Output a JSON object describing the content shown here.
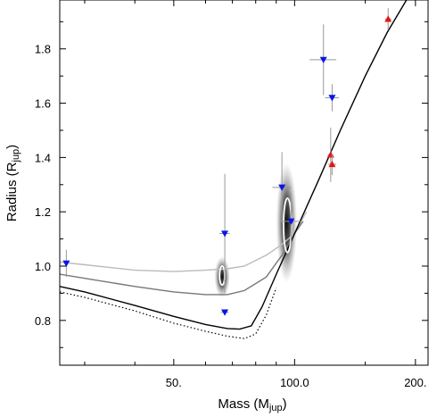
{
  "chart_data": {
    "type": "scatter",
    "title": "",
    "xlabel": "Mass (M",
    "xlabel_sub": "jup",
    "xlabel_end": ")",
    "ylabel": "Radius (R",
    "ylabel_sub": "jup",
    "ylabel_end": ")",
    "x_scale": "log",
    "xlim": [
      26,
      215
    ],
    "ylim": [
      0.635,
      1.98
    ],
    "x_ticks": [
      {
        "value": 50,
        "label": "50."
      },
      {
        "value": 100,
        "label": "100.0"
      },
      {
        "value": 200,
        "label": "200."
      }
    ],
    "x_minor_ticks": [
      30,
      40,
      60,
      70,
      80,
      90,
      150
    ],
    "y_ticks": [
      {
        "value": 0.8,
        "label": "0.8"
      },
      {
        "value": 1.0,
        "label": "1.0"
      },
      {
        "value": 1.2,
        "label": "1.2"
      },
      {
        "value": 1.4,
        "label": "1.4"
      },
      {
        "value": 1.6,
        "label": "1.6"
      },
      {
        "value": 1.8,
        "label": "1.8"
      }
    ],
    "grid": false,
    "colors": {
      "blue_marker": "#0a14e6",
      "red_marker": "#e61414",
      "error_bar": "#999999"
    },
    "series": [
      {
        "marker": "triangle-down",
        "color": "#0a14e6",
        "points": [
          {
            "x": 27.0,
            "y": 1.01,
            "xerr": 0.0,
            "yerr": 0.05
          },
          {
            "x": 67.0,
            "y": 1.12,
            "xerr": 2.0,
            "yerr": 0.22
          },
          {
            "x": 67.0,
            "y": 0.83,
            "xerr": 1.5,
            "yerr": 0.01
          },
          {
            "x": 93.0,
            "y": 1.29,
            "xerr": 5.0,
            "yerr": 0.13
          },
          {
            "x": 98.0,
            "y": 1.165,
            "xerr": 5.5,
            "yerr": 0.1
          },
          {
            "x": 118.0,
            "y": 1.76,
            "xerr": 9.0,
            "yerr": 0.13
          },
          {
            "x": 124.0,
            "y": 1.62,
            "xerr": 5.0,
            "yerr": 0.05
          }
        ]
      },
      {
        "marker": "triangle-up",
        "color": "#e61414",
        "points": [
          {
            "x": 123.0,
            "y": 1.41,
            "xerr": 2.0,
            "yerr": 0.1
          },
          {
            "x": 124.0,
            "y": 1.375,
            "xerr": 3.0,
            "yerr": 0.04
          },
          {
            "x": 171.0,
            "y": 1.91,
            "xerr": 3.0,
            "yerr": 0.04
          }
        ]
      }
    ],
    "curves": [
      {
        "color": "#bbbbbb",
        "style": "solid",
        "points": [
          [
            26,
            1.015
          ],
          [
            30,
            1.005
          ],
          [
            40,
            0.985
          ],
          [
            50,
            0.98
          ],
          [
            60,
            0.985
          ],
          [
            68,
            0.99
          ],
          [
            75,
            1.0
          ],
          [
            85,
            1.04
          ],
          [
            93,
            1.08
          ],
          [
            100,
            1.12
          ],
          [
            107,
            1.2
          ]
        ]
      },
      {
        "color": "#777777",
        "style": "solid",
        "points": [
          [
            26,
            0.97
          ],
          [
            30,
            0.955
          ],
          [
            40,
            0.925
          ],
          [
            50,
            0.905
          ],
          [
            60,
            0.895
          ],
          [
            68,
            0.895
          ],
          [
            75,
            0.91
          ],
          [
            85,
            0.96
          ],
          [
            93,
            1.04
          ],
          [
            100,
            1.12
          ],
          [
            105,
            1.165
          ]
        ]
      },
      {
        "color": "#000000",
        "style": "solid",
        "points": [
          [
            26,
            0.925
          ],
          [
            30,
            0.905
          ],
          [
            40,
            0.855
          ],
          [
            50,
            0.815
          ],
          [
            60,
            0.785
          ],
          [
            68,
            0.77
          ],
          [
            73,
            0.768
          ],
          [
            78,
            0.78
          ],
          [
            83,
            0.85
          ],
          [
            90,
            0.97
          ],
          [
            100,
            1.12
          ],
          [
            115,
            1.32
          ],
          [
            130,
            1.5
          ],
          [
            150,
            1.7
          ],
          [
            170,
            1.86
          ],
          [
            190,
            1.98
          ]
        ]
      },
      {
        "color": "#000000",
        "style": "dotted",
        "points": [
          [
            26,
            0.905
          ],
          [
            30,
            0.885
          ],
          [
            40,
            0.835
          ],
          [
            50,
            0.79
          ],
          [
            60,
            0.76
          ],
          [
            68,
            0.742
          ],
          [
            75,
            0.733
          ],
          [
            80,
            0.75
          ],
          [
            85,
            0.82
          ],
          [
            90,
            0.92
          ]
        ]
      }
    ],
    "density_regions": [
      {
        "cx": 66.0,
        "cy": 0.96,
        "sx": 1.0,
        "sy": 0.045
      },
      {
        "cx": 95.5,
        "cy": 1.16,
        "sx": 2.4,
        "sy": 0.13
      }
    ],
    "contours": [
      {
        "cx": 66.0,
        "cy": 0.965,
        "rx": 1.0,
        "ry": 0.035
      },
      {
        "cx": 96.0,
        "cy": 1.15,
        "rx": 2.2,
        "ry": 0.1
      }
    ]
  }
}
